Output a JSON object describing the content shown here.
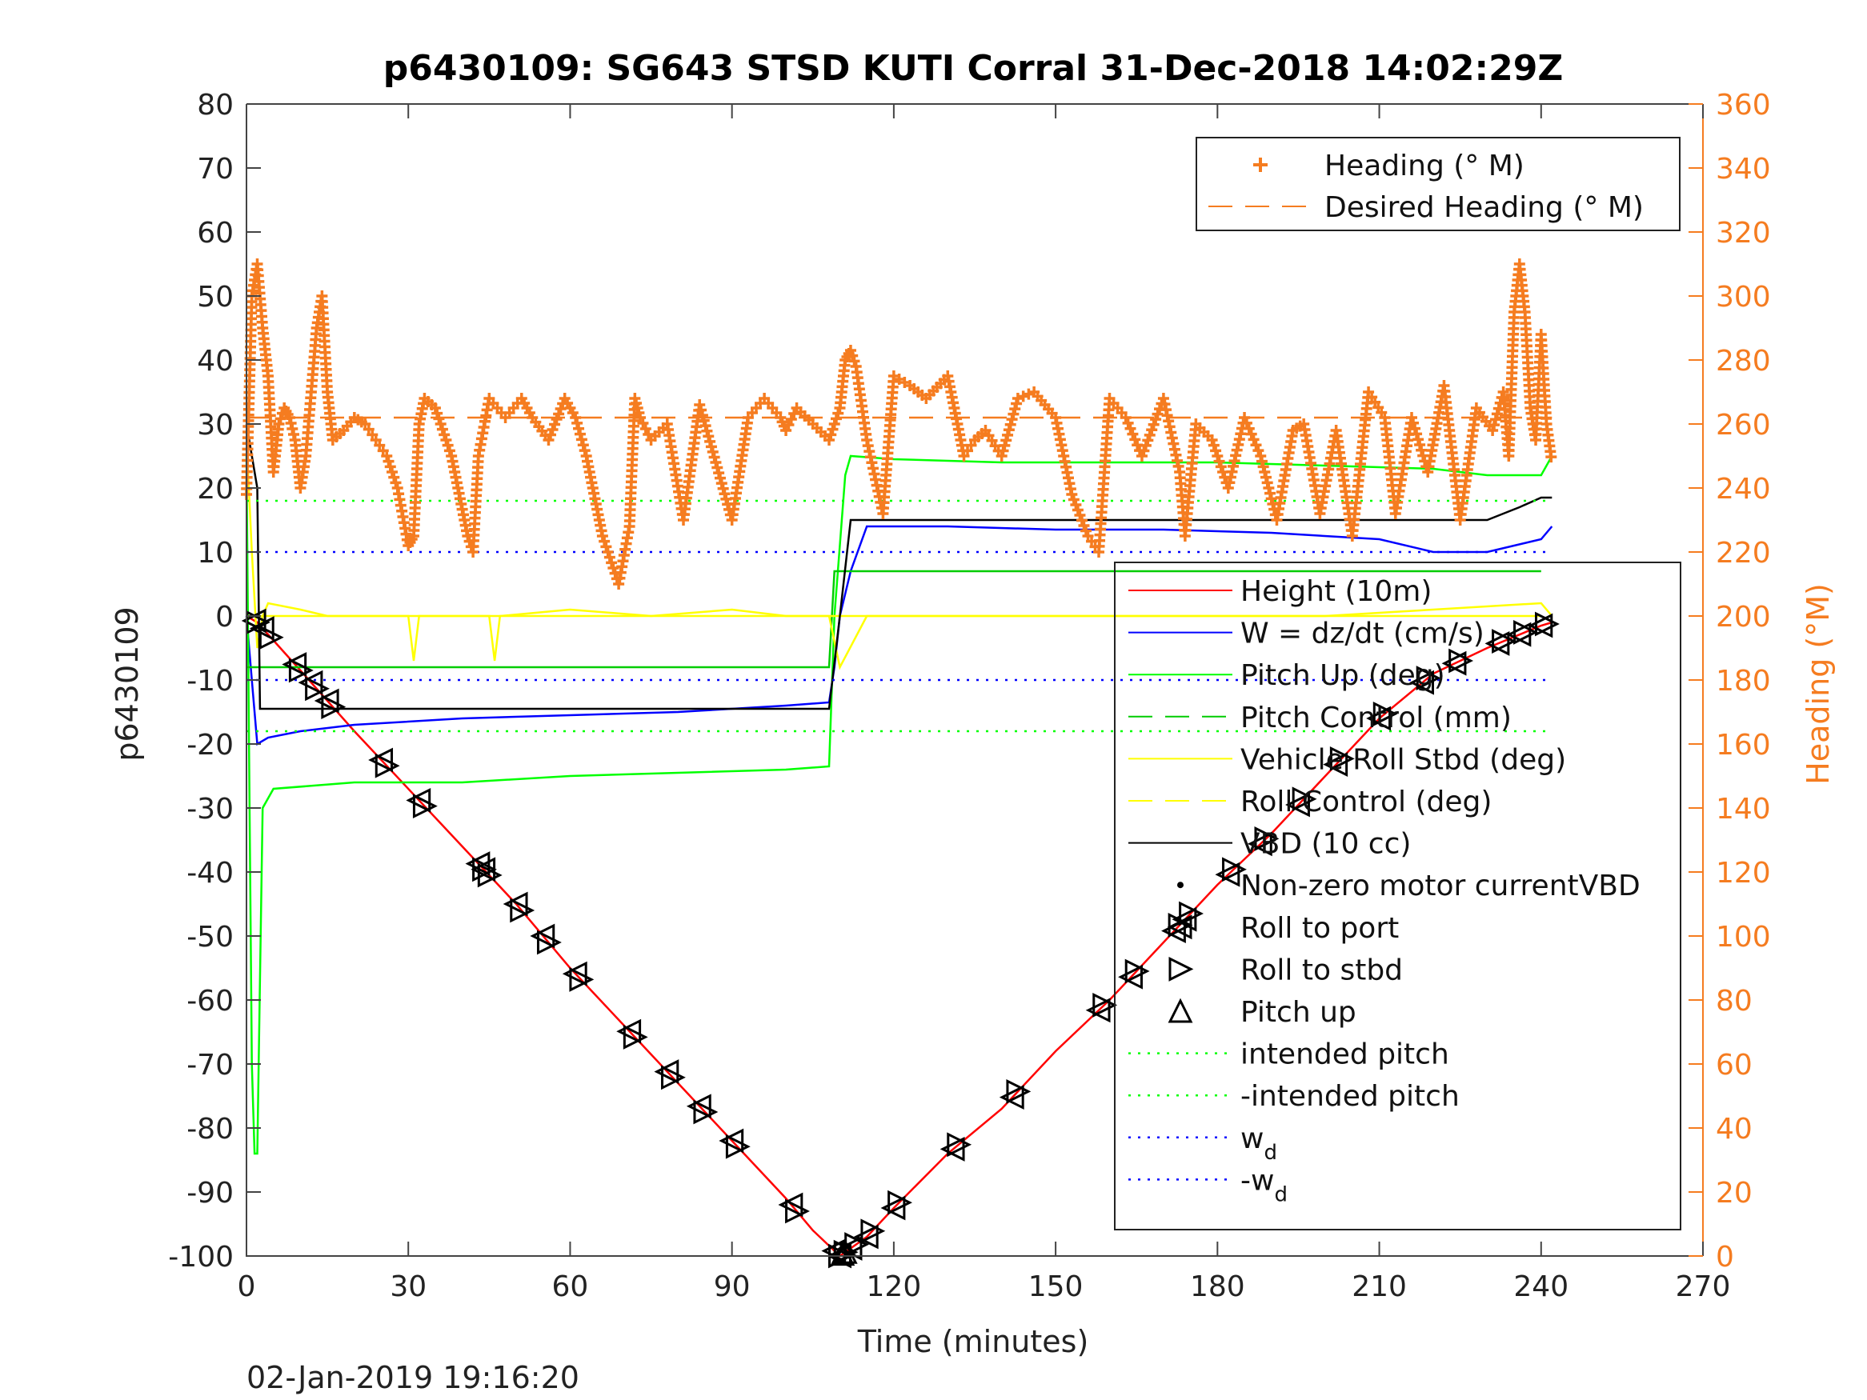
{
  "chart_data": {
    "type": "line",
    "title": "p6430109: SG643 STSD KUTI Corral 31-Dec-2018 14:02:29Z",
    "xlabel": "Time (minutes)",
    "ylabel": "p6430109",
    "ylabel_right": "Heading (°M)",
    "timestamp": "02-Jan-2019 19:16:20",
    "xlim": [
      0,
      270
    ],
    "ylim": [
      -100,
      80
    ],
    "ylim_right": [
      0,
      360
    ],
    "xticks": [
      "0",
      "30",
      "60",
      "90",
      "120",
      "150",
      "180",
      "210",
      "240",
      "270"
    ],
    "yticks": [
      "80",
      "70",
      "60",
      "50",
      "40",
      "30",
      "20",
      "10",
      "0",
      "-10",
      "-20",
      "-30",
      "-40",
      "-50",
      "-60",
      "-70",
      "-80",
      "-90",
      "-100"
    ],
    "yticks_right": [
      "360",
      "340",
      "320",
      "300",
      "280",
      "260",
      "240",
      "220",
      "200",
      "180",
      "160",
      "140",
      "120",
      "100",
      "80",
      "60",
      "40",
      "20",
      "0"
    ],
    "grid": false,
    "legend_top": {
      "placement": "top-right",
      "entries": [
        {
          "label": "Heading (° M)",
          "color": "#f57c20",
          "style": "plus"
        },
        {
          "label": "Desired Heading (° M)",
          "color": "#f57c20",
          "style": "dashed"
        }
      ]
    },
    "legend_main": {
      "placement": "right",
      "entries": [
        {
          "label": "Height (10m)",
          "color": "#ff0000",
          "style": "solid"
        },
        {
          "label": "W = dz/dt (cm/s)",
          "color": "#0000ff",
          "style": "solid"
        },
        {
          "label": "Pitch Up (deg)",
          "color": "#00ff00",
          "style": "solid"
        },
        {
          "label": "Pitch Control (mm)",
          "color": "#00cc00",
          "style": "dashed"
        },
        {
          "label": "Vehicle Roll Stbd (deg)",
          "color": "#ffff00",
          "style": "solid"
        },
        {
          "label": "Roll Control (deg)",
          "color": "#ffff00",
          "style": "dashed"
        },
        {
          "label": "VBD (10 cc)",
          "color": "#000000",
          "style": "solid"
        },
        {
          "label": "Non-zero motor currentVBD",
          "color": "#000000",
          "style": "dot"
        },
        {
          "label": "Roll to port",
          "color": "#000000",
          "style": "tri-left"
        },
        {
          "label": "Roll to stbd",
          "color": "#000000",
          "style": "tri-right"
        },
        {
          "label": "Pitch up",
          "color": "#000000",
          "style": "tri-up"
        },
        {
          "label": "intended pitch",
          "color": "#00ff00",
          "style": "dotted"
        },
        {
          "label": "-intended pitch",
          "color": "#00ff00",
          "style": "dotted"
        },
        {
          "label": "w",
          "sub": "d",
          "color": "#0000ff",
          "style": "dotted"
        },
        {
          "label": "-w",
          "sub": "d",
          "color": "#0000ff",
          "style": "dotted"
        }
      ]
    },
    "series": [
      {
        "name": "Height (10m)",
        "color": "#ff0000",
        "axis": "left",
        "x": [
          0,
          2,
          10,
          20,
          30,
          40,
          50,
          60,
          70,
          80,
          90,
          100,
          105,
          110,
          115,
          120,
          130,
          140,
          150,
          160,
          170,
          180,
          190,
          200,
          210,
          220,
          230,
          240,
          242
        ],
        "y": [
          0,
          -1,
          -8.5,
          -18,
          -27,
          -36,
          -45,
          -55,
          -64,
          -73,
          -82,
          -91,
          -96,
          -100,
          -97,
          -92.5,
          -84,
          -77,
          -68,
          -60,
          -51,
          -42,
          -34,
          -25,
          -16,
          -9,
          -5,
          -1.5,
          -1
        ]
      },
      {
        "name": "W = dz/dt (cm/s)",
        "color": "#0000ff",
        "axis": "left",
        "x": [
          0,
          1,
          2,
          4,
          10,
          20,
          40,
          60,
          80,
          100,
          108,
          109,
          110,
          112,
          115,
          130,
          150,
          170,
          190,
          210,
          220,
          230,
          240,
          242
        ],
        "y": [
          0,
          -10,
          -20,
          -19,
          -18,
          -17,
          -16,
          -15.5,
          -15,
          -14,
          -13.5,
          -8,
          0,
          7,
          14,
          14,
          13.5,
          13.5,
          13,
          12,
          10,
          10,
          12,
          14
        ]
      },
      {
        "name": "Pitch Up (deg)",
        "color": "#00ff00",
        "axis": "left",
        "x": [
          0,
          1,
          1.5,
          2,
          3,
          5,
          20,
          40,
          60,
          80,
          100,
          108,
          109,
          111,
          112,
          120,
          140,
          160,
          180,
          200,
          220,
          230,
          240,
          242
        ],
        "y": [
          25,
          -70,
          -84,
          -84,
          -30,
          -27,
          -26,
          -26,
          -25,
          -24.5,
          -24,
          -23.5,
          0,
          22,
          25,
          24.5,
          24,
          24,
          24,
          23.5,
          23,
          22,
          22,
          25
        ]
      },
      {
        "name": "Pitch Control (mm)",
        "color": "#00cc00",
        "axis": "left",
        "x": [
          0,
          108,
          109,
          240
        ],
        "y": [
          -8,
          -8,
          7,
          7
        ]
      },
      {
        "name": "Vehicle Roll Stbd (deg)",
        "color": "#ffff00",
        "axis": "left",
        "x": [
          0,
          1,
          2,
          3,
          4,
          10,
          15,
          30,
          31,
          32,
          45,
          46,
          47,
          60,
          75,
          90,
          100,
          108,
          110,
          115,
          140,
          160,
          200,
          220,
          240,
          242
        ],
        "y": [
          28,
          10,
          -5,
          0,
          2,
          1,
          0,
          0,
          -7,
          0,
          0,
          -7,
          0,
          1,
          0,
          1,
          0,
          0,
          -8,
          0,
          0,
          0,
          0,
          1,
          2,
          0
        ]
      },
      {
        "name": "Roll Control (deg)",
        "color": "#ffff00",
        "axis": "left",
        "x": [
          0,
          240
        ],
        "y": [
          0,
          0
        ]
      },
      {
        "name": "VBD (10 cc)",
        "color": "#000000",
        "axis": "left",
        "x": [
          0,
          2,
          2.5,
          108,
          110,
          112,
          230,
          233,
          236,
          240,
          242
        ],
        "y": [
          30,
          20,
          -14.5,
          -14.5,
          0,
          15,
          15,
          16,
          17,
          18.5,
          18.5
        ]
      },
      {
        "name": "intended pitch",
        "color": "#00ff00",
        "axis": "left",
        "style": "dotted",
        "x": [
          0,
          242
        ],
        "y": [
          18,
          18
        ]
      },
      {
        "name": "-intended pitch",
        "color": "#00ff00",
        "axis": "left",
        "style": "dotted",
        "x": [
          0,
          242
        ],
        "y": [
          -18,
          -18
        ]
      },
      {
        "name": "w_d",
        "color": "#0000ff",
        "axis": "left",
        "style": "dotted",
        "x": [
          0,
          242
        ],
        "y": [
          10,
          10
        ]
      },
      {
        "name": "-w_d",
        "color": "#0000ff",
        "axis": "left",
        "style": "dotted",
        "x": [
          0,
          242
        ],
        "y": [
          -10,
          -10
        ]
      },
      {
        "name": "Desired Heading (° M)",
        "color": "#f57c20",
        "axis": "right",
        "style": "dashed",
        "x": [
          0,
          242
        ],
        "y": [
          262,
          262
        ]
      },
      {
        "name": "Heading (° M)",
        "color": "#f57c20",
        "axis": "right",
        "style": "plus",
        "x": [
          0,
          1,
          2,
          3,
          4,
          5,
          6,
          7,
          8,
          9,
          10,
          11,
          12,
          13,
          14,
          15,
          16,
          18,
          20,
          22,
          24,
          26,
          28,
          30,
          31,
          32,
          33,
          35,
          38,
          41,
          42,
          43,
          45,
          48,
          51,
          53,
          56,
          59,
          61,
          63,
          66,
          69,
          71,
          72,
          73,
          75,
          78,
          81,
          84,
          87,
          90,
          93,
          96,
          99,
          100,
          102,
          105,
          108,
          110,
          111,
          112,
          113,
          115,
          118,
          120,
          123,
          126,
          130,
          133,
          135,
          137,
          140,
          143,
          146,
          150,
          153,
          156,
          158,
          160,
          163,
          166,
          170,
          173,
          174,
          176,
          179,
          182,
          185,
          188,
          191,
          194,
          196,
          199,
          202,
          205,
          208,
          211,
          213,
          216,
          219,
          222,
          225,
          228,
          231,
          233,
          234,
          235,
          236,
          237,
          238,
          239,
          240,
          241,
          242
        ],
        "y": [
          238,
          300,
          310,
          290,
          275,
          245,
          260,
          265,
          262,
          255,
          240,
          250,
          270,
          290,
          300,
          270,
          255,
          258,
          262,
          260,
          255,
          250,
          240,
          222,
          225,
          260,
          268,
          265,
          250,
          225,
          220,
          250,
          268,
          262,
          268,
          262,
          255,
          268,
          262,
          250,
          225,
          210,
          228,
          268,
          262,
          255,
          260,
          230,
          266,
          248,
          230,
          262,
          268,
          262,
          258,
          265,
          260,
          255,
          265,
          280,
          283,
          278,
          255,
          232,
          275,
          272,
          268,
          275,
          250,
          255,
          258,
          250,
          268,
          270,
          262,
          238,
          225,
          220,
          268,
          262,
          250,
          268,
          245,
          225,
          260,
          255,
          240,
          262,
          250,
          230,
          258,
          260,
          232,
          258,
          225,
          270,
          262,
          232,
          262,
          245,
          272,
          230,
          265,
          258,
          270,
          250,
          295,
          310,
          295,
          265,
          255,
          288,
          260,
          248
        ]
      }
    ],
    "markers": {
      "roll_to_port_x": [
        1.5,
        3,
        9,
        12,
        15,
        25,
        32,
        43,
        44,
        50,
        55,
        61,
        71,
        78,
        84,
        90,
        101,
        109,
        110,
        112,
        115,
        120,
        131,
        142,
        158,
        164,
        172,
        174,
        182,
        188,
        195,
        202,
        210,
        218,
        224,
        232,
        236,
        240
      ],
      "roll_to_stbd_x": [
        2,
        4.5,
        10,
        13,
        16,
        26,
        33,
        44,
        45,
        51,
        56,
        62,
        72,
        79,
        85,
        91,
        102,
        110,
        111,
        113,
        116,
        121,
        132,
        143,
        159,
        165,
        173,
        175,
        183,
        189,
        196,
        203,
        211,
        219,
        225,
        233,
        237,
        241
      ],
      "pitch_up_x": [
        110.5,
        111
      ]
    }
  }
}
